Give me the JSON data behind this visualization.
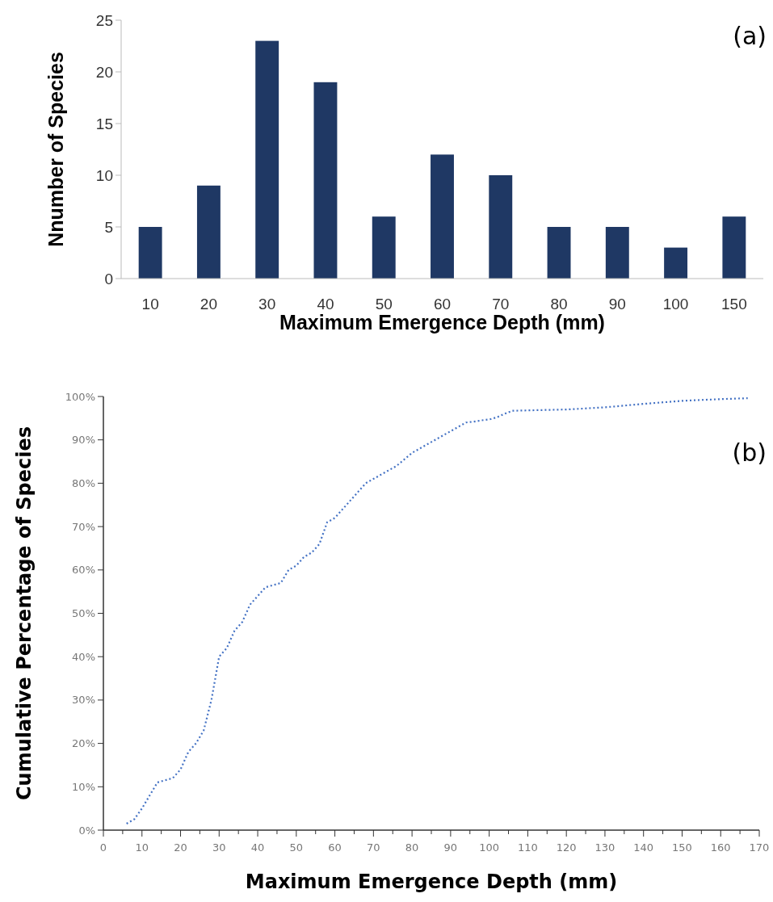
{
  "chart_data": [
    {
      "type": "bar",
      "categories": [
        "10",
        "20",
        "30",
        "40",
        "50",
        "60",
        "70",
        "80",
        "90",
        "100",
        "150"
      ],
      "values": [
        5,
        9,
        23,
        19,
        6,
        12,
        10,
        5,
        5,
        3,
        6
      ],
      "color": "#1f3864",
      "xlabel": "Maximum Emergence Depth (mm)",
      "ylabel": "Nnumber of Species",
      "ylim": [
        0,
        25
      ],
      "yticks": [
        0,
        5,
        10,
        15,
        20,
        25
      ],
      "annotations": [
        "(a)"
      ]
    },
    {
      "type": "line",
      "line_style": "dotted",
      "marker": "none",
      "xlabel": "Maximum Emergence Depth (mm)",
      "ylabel": "Cumulative Percentage of Species",
      "xlim": [
        0,
        170
      ],
      "xticks": [
        0,
        {
          "value": 5,
          "label": null
        },
        10,
        {
          "value": 15,
          "label": null
        },
        20,
        {
          "value": 25,
          "label": null
        },
        30,
        {
          "value": 35,
          "label": null
        },
        40,
        {
          "value": 45,
          "label": null
        },
        50,
        {
          "value": 55,
          "label": null
        },
        60,
        {
          "value": 65,
          "label": null
        },
        70,
        {
          "value": 75,
          "label": null
        },
        80,
        {
          "value": 85,
          "label": null
        },
        90,
        {
          "value": 95,
          "label": null
        },
        100,
        {
          "value": 105,
          "label": null
        },
        110,
        {
          "value": 115,
          "label": null
        },
        120,
        {
          "value": 125,
          "label": null
        },
        130,
        {
          "value": 135,
          "label": null
        },
        140,
        {
          "value": 145,
          "label": null
        },
        150,
        {
          "value": 155,
          "label": null
        },
        160,
        {
          "value": 165,
          "label": null
        },
        170
      ],
      "ylim": [
        0,
        100
      ],
      "yticks": [
        {
          "value": 0,
          "label": "0%"
        },
        {
          "value": 10,
          "label": "10%"
        },
        {
          "value": 20,
          "label": "20%"
        },
        {
          "value": 30,
          "label": "30%"
        },
        {
          "value": 40,
          "label": "40%"
        },
        {
          "value": 50,
          "label": "50%"
        },
        {
          "value": 60,
          "label": "60%"
        },
        {
          "value": 70,
          "label": "70%"
        },
        {
          "value": 80,
          "label": "80%"
        },
        {
          "value": 90,
          "label": "90%"
        },
        {
          "value": 100,
          "label": "100%"
        }
      ],
      "annotations": [
        "(b)"
      ],
      "series": [
        {
          "color": "#4472c4",
          "x": [
            6,
            8,
            10,
            12,
            14,
            16,
            18,
            20,
            22,
            24,
            26,
            28,
            30,
            32,
            34,
            36,
            38,
            40,
            42,
            44,
            46,
            48,
            50,
            52,
            54,
            56,
            58,
            60,
            62,
            64,
            66,
            68,
            70,
            72,
            74,
            76,
            78,
            80,
            82,
            84,
            86,
            88,
            90,
            92,
            94,
            96,
            98,
            100,
            102,
            104,
            106,
            110,
            120,
            130,
            140,
            150,
            160,
            167
          ],
          "values": [
            1.5,
            2.5,
            5,
            8,
            11,
            11.5,
            12,
            14,
            18,
            20,
            23,
            30,
            40,
            42,
            46,
            48,
            52,
            54,
            56,
            56.5,
            57,
            60,
            61,
            63,
            64,
            66,
            71,
            72,
            74,
            76,
            78,
            80,
            81,
            82,
            83,
            84,
            85.5,
            87,
            88,
            89,
            90,
            91,
            92,
            93,
            94,
            94.2,
            94.5,
            94.7,
            95.2,
            96,
            96.7,
            96.8,
            97,
            97.5,
            98.3,
            99,
            99.4,
            99.6
          ]
        }
      ]
    }
  ]
}
